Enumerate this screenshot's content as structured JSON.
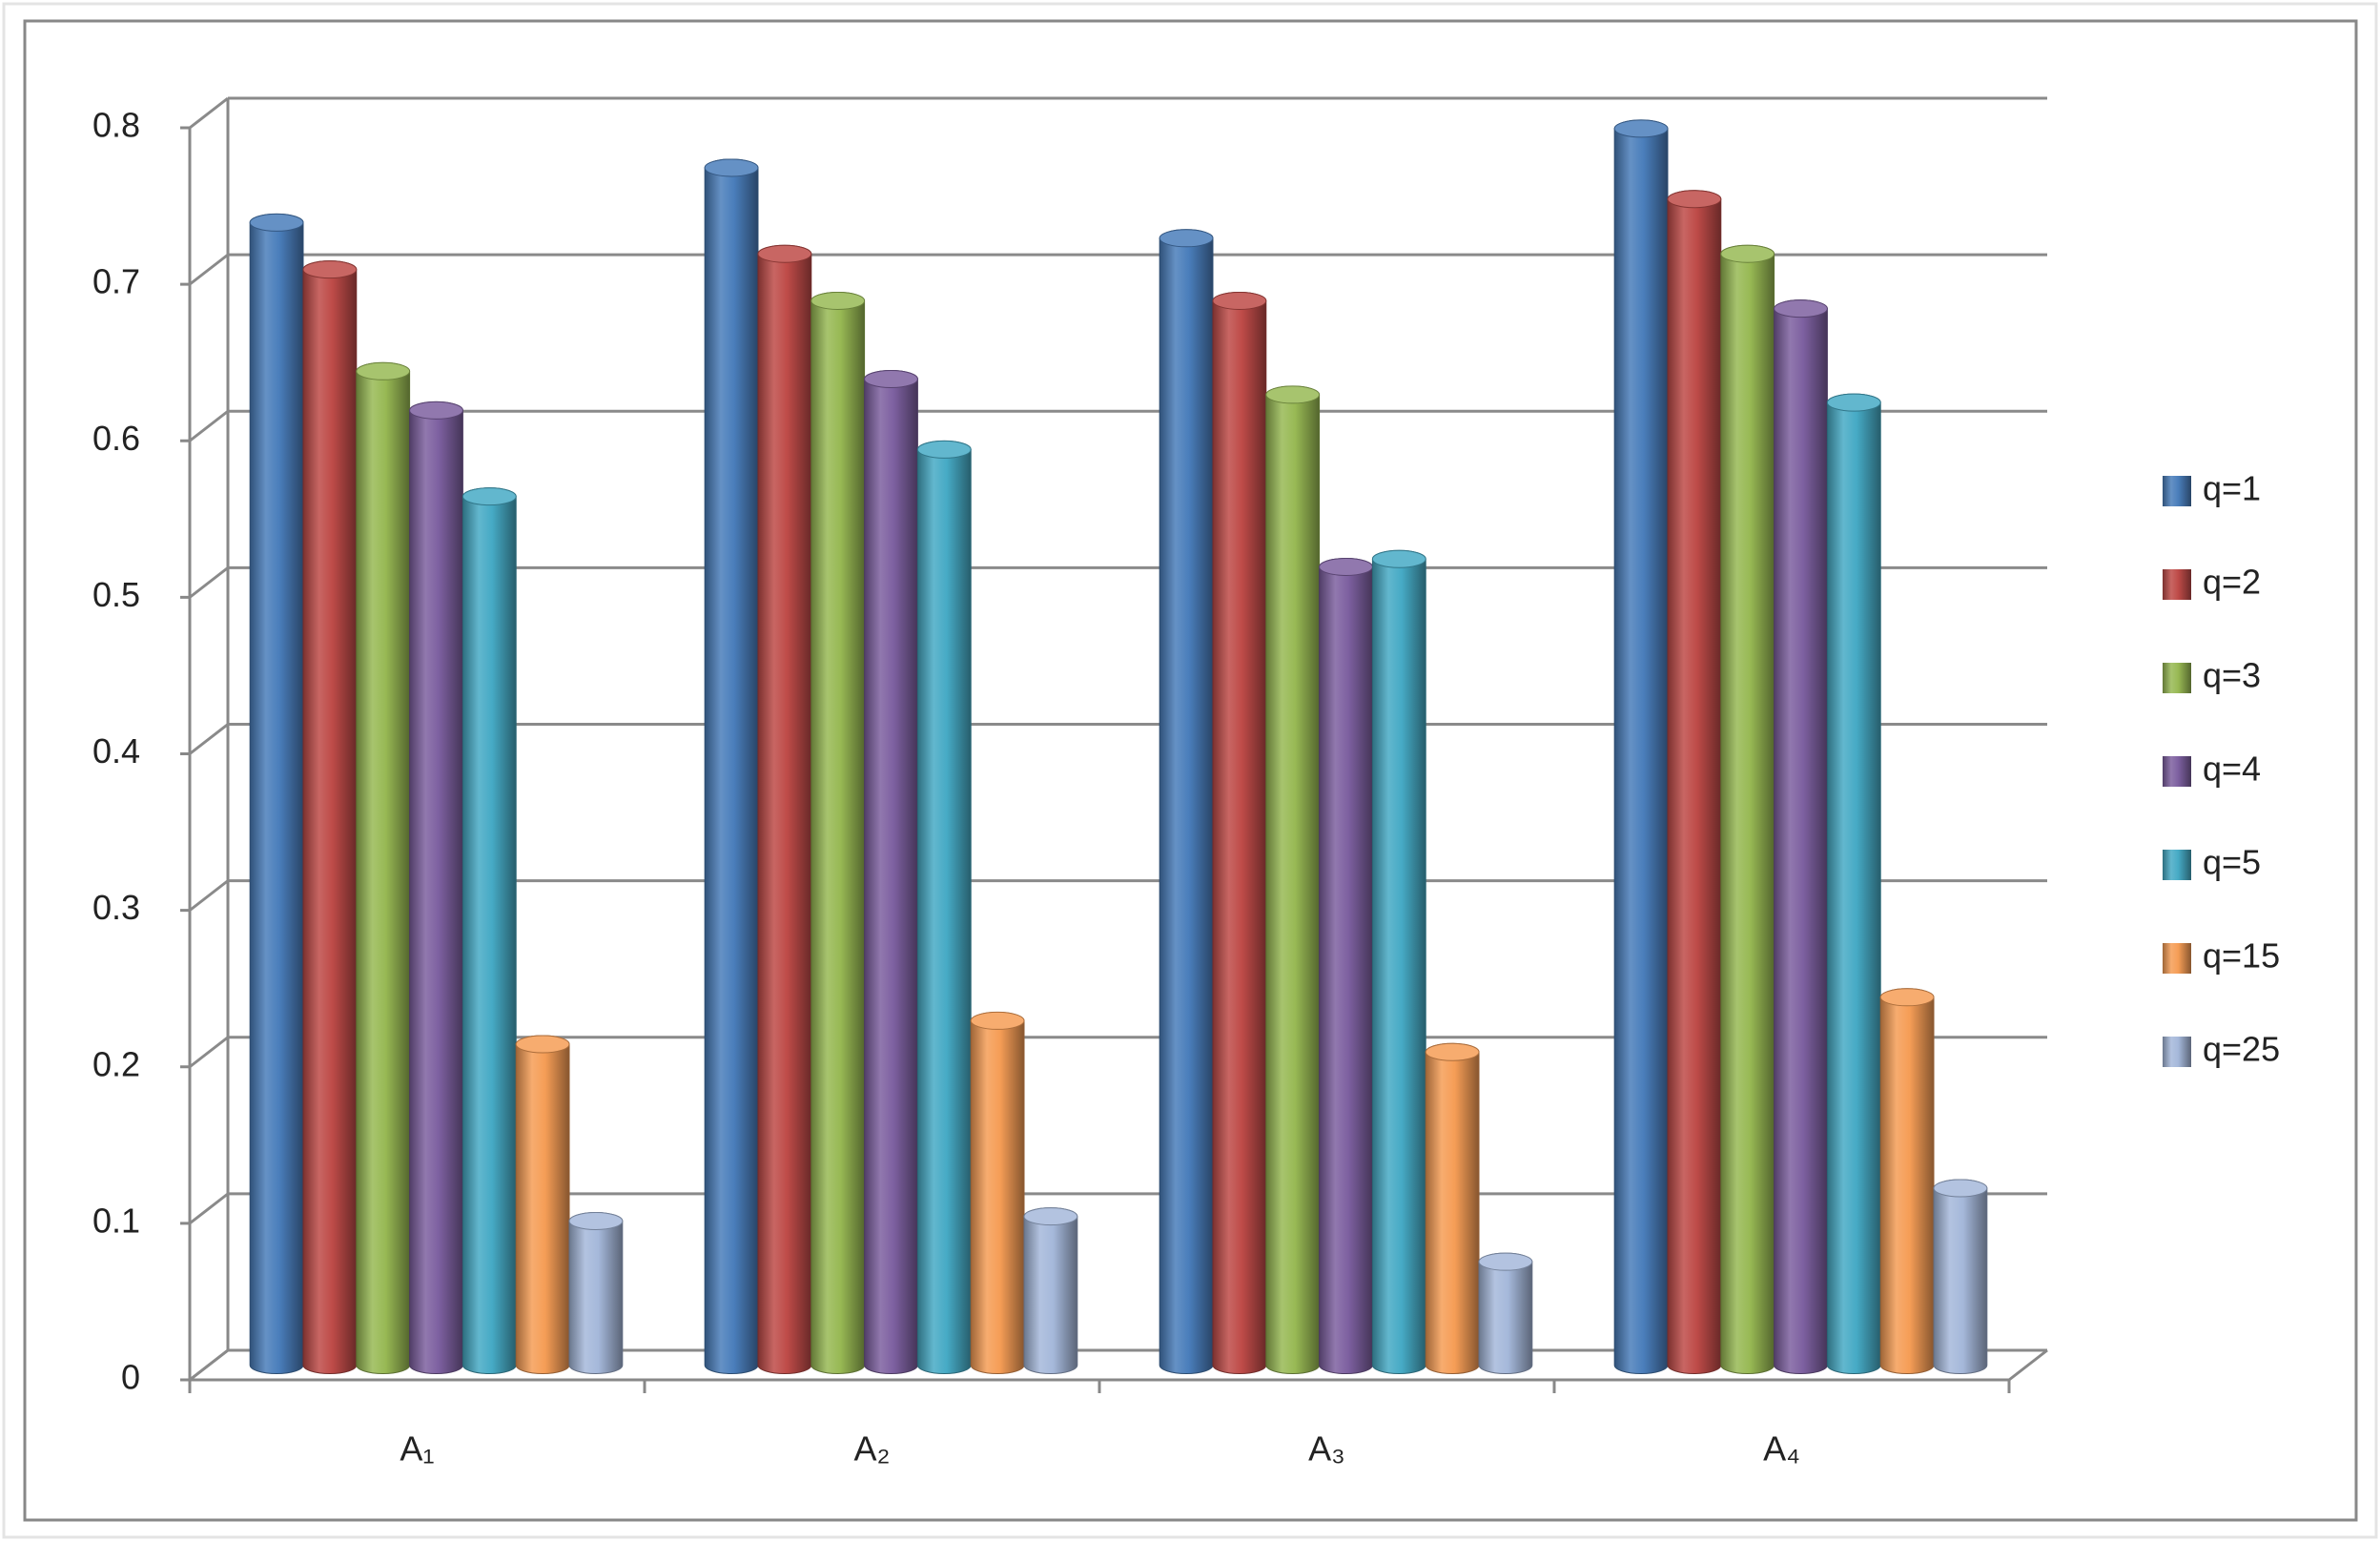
{
  "chart_data": {
    "type": "bar",
    "categories": [
      "A₁",
      "A₂",
      "A₃",
      "A₄"
    ],
    "series": [
      {
        "name": "q=1",
        "color": "#4a7ebb",
        "values": [
          0.73,
          0.765,
          0.72,
          0.79
        ]
      },
      {
        "name": "q=2",
        "color": "#be4b48",
        "values": [
          0.7,
          0.71,
          0.68,
          0.745
        ]
      },
      {
        "name": "q=3",
        "color": "#98b954",
        "values": [
          0.635,
          0.68,
          0.62,
          0.71
        ]
      },
      {
        "name": "q=4",
        "color": "#7d60a0",
        "values": [
          0.61,
          0.63,
          0.51,
          0.675
        ]
      },
      {
        "name": "q=5",
        "color": "#46aac5",
        "values": [
          0.555,
          0.585,
          0.515,
          0.615
        ]
      },
      {
        "name": "q=15",
        "color": "#f59d56",
        "values": [
          0.205,
          0.22,
          0.2,
          0.235
        ]
      },
      {
        "name": "q=25",
        "color": "#a5b8da",
        "values": [
          0.092,
          0.095,
          0.066,
          0.113
        ]
      }
    ],
    "ylim": [
      0,
      0.8
    ],
    "yticks": [
      0,
      0.1,
      0.2,
      0.3,
      0.4,
      0.5,
      0.6,
      0.7,
      0.8
    ],
    "grid": true,
    "legend": "right"
  }
}
